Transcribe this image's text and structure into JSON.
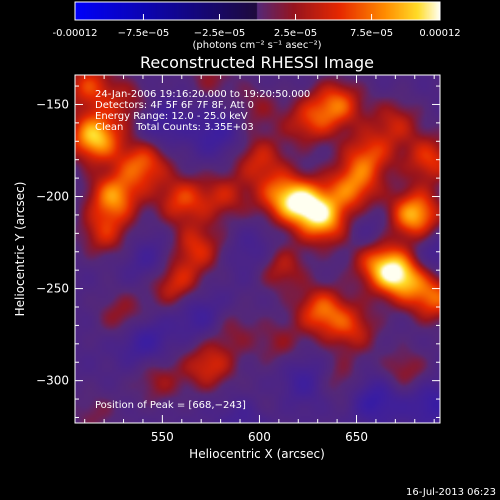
{
  "chart_data": {
    "type": "heatmap",
    "title": "Reconstructed RHESSI Image",
    "xlabel": "Heliocentric X (arcsec)",
    "ylabel": "Heliocentric Y (arcsec)",
    "xlim": [
      505,
      693
    ],
    "ylim": [
      -323,
      -134
    ],
    "xticks": [
      550,
      600,
      650
    ],
    "yticks": [
      -150,
      -200,
      -250,
      -300
    ],
    "colorbar": {
      "ticks": [
        {
          "value": -0.00012,
          "label": "-0.00012"
        },
        {
          "value": -7.5e-05,
          "label": "−7.5e−05"
        },
        {
          "value": -2.5e-05,
          "label": "−2.5e−05"
        },
        {
          "value": 2.5e-05,
          "label": "2.5e−05"
        },
        {
          "value": 7.5e-05,
          "label": "7.5e−05"
        },
        {
          "value": 0.00012,
          "label": "0.00012"
        }
      ],
      "range": [
        -0.00012,
        0.00012
      ],
      "units": "(photons cm⁻² s⁻¹ asec⁻²)"
    },
    "annotations": [
      "24-Jan-2006 19:16:20.000 to 19:20:50.000",
      "Detectors: 4F 5F 6F 7F 8F, Att 0",
      "Energy Range: 12.0 - 25.0 keV",
      "Clean    Total Counts: 3.35E+03"
    ],
    "peak_label": "Position of Peak = [668,−243]",
    "peak": [
      668,
      -243
    ],
    "blobs": [
      {
        "x": 515,
        "y": -168,
        "v": 1.0
      },
      {
        "x": 512,
        "y": -140,
        "v": 0.6
      },
      {
        "x": 533,
        "y": -150,
        "v": 0.4
      },
      {
        "x": 540,
        "y": -182,
        "v": 0.7
      },
      {
        "x": 525,
        "y": -200,
        "v": 0.8
      },
      {
        "x": 520,
        "y": -220,
        "v": 0.5
      },
      {
        "x": 560,
        "y": -202,
        "v": 0.6
      },
      {
        "x": 568,
        "y": -228,
        "v": 0.55
      },
      {
        "x": 556,
        "y": -247,
        "v": 0.6
      },
      {
        "x": 530,
        "y": -265,
        "v": 0.4
      },
      {
        "x": 582,
        "y": -200,
        "v": 0.45
      },
      {
        "x": 600,
        "y": -180,
        "v": 0.5
      },
      {
        "x": 612,
        "y": -200,
        "v": 0.7
      },
      {
        "x": 625,
        "y": -205,
        "v": 0.85
      },
      {
        "x": 635,
        "y": -215,
        "v": 0.65
      },
      {
        "x": 648,
        "y": -195,
        "v": 0.7
      },
      {
        "x": 656,
        "y": -178,
        "v": 0.6
      },
      {
        "x": 640,
        "y": -150,
        "v": 0.7
      },
      {
        "x": 625,
        "y": -160,
        "v": 0.5
      },
      {
        "x": 670,
        "y": -160,
        "v": 0.45
      },
      {
        "x": 680,
        "y": -210,
        "v": 0.95
      },
      {
        "x": 688,
        "y": -180,
        "v": 0.6
      },
      {
        "x": 660,
        "y": -235,
        "v": 0.6
      },
      {
        "x": 672,
        "y": -243,
        "v": 1.0
      },
      {
        "x": 690,
        "y": -255,
        "v": 0.7
      },
      {
        "x": 610,
        "y": -238,
        "v": 0.55
      },
      {
        "x": 632,
        "y": -262,
        "v": 0.7
      },
      {
        "x": 648,
        "y": -272,
        "v": 0.5
      },
      {
        "x": 640,
        "y": -300,
        "v": 0.35
      },
      {
        "x": 675,
        "y": -296,
        "v": 0.4
      },
      {
        "x": 574,
        "y": -292,
        "v": 0.55
      },
      {
        "x": 585,
        "y": -272,
        "v": 0.3
      },
      {
        "x": 610,
        "y": -280,
        "v": 0.3
      },
      {
        "x": 548,
        "y": -300,
        "v": 0.35
      },
      {
        "x": 515,
        "y": -318,
        "v": 0.25
      },
      {
        "x": 600,
        "y": -315,
        "v": 0.25
      },
      {
        "x": 575,
        "y": -135,
        "v": 0.3
      },
      {
        "x": 598,
        "y": -152,
        "v": 0.3
      },
      {
        "x": 548,
        "y": -160,
        "v": -0.35
      },
      {
        "x": 578,
        "y": -165,
        "v": -0.35
      },
      {
        "x": 600,
        "y": -232,
        "v": -0.3
      },
      {
        "x": 570,
        "y": -265,
        "v": -0.35
      },
      {
        "x": 540,
        "y": -278,
        "v": -0.4
      },
      {
        "x": 545,
        "y": -236,
        "v": -0.3
      },
      {
        "x": 660,
        "y": -310,
        "v": -0.45
      },
      {
        "x": 688,
        "y": -312,
        "v": -0.4
      },
      {
        "x": 625,
        "y": -300,
        "v": -0.35
      },
      {
        "x": 655,
        "y": -220,
        "v": -0.25
      },
      {
        "x": 690,
        "y": -232,
        "v": -0.3
      },
      {
        "x": 595,
        "y": -320,
        "v": -0.35
      }
    ]
  },
  "footer": {
    "timestamp": "16-Jul-2013 06:23"
  }
}
